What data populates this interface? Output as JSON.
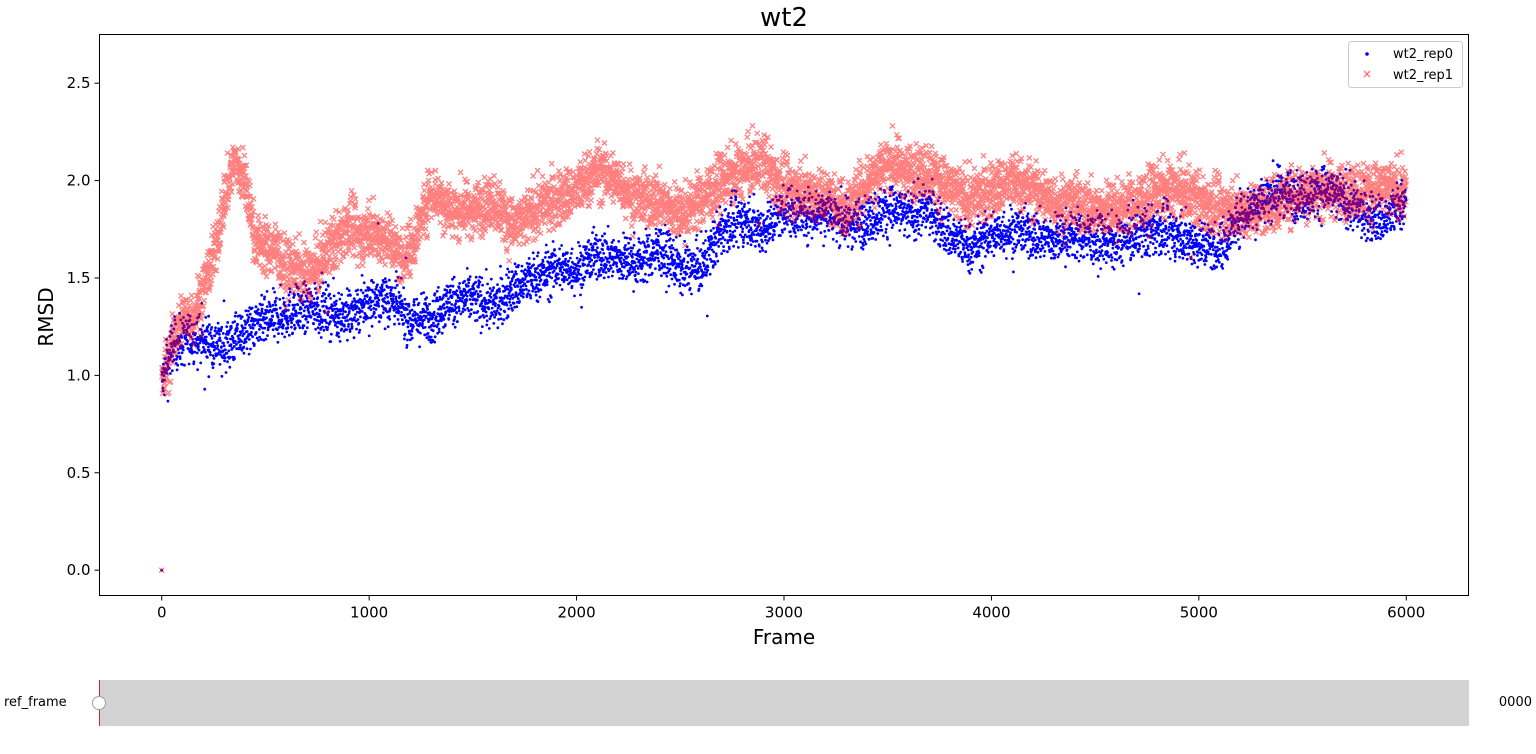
{
  "chart_data": {
    "type": "scatter",
    "title": "wt2",
    "xlabel": "Frame",
    "ylabel": "RMSD",
    "xlim": [
      -300,
      6300
    ],
    "ylim": [
      -0.13,
      2.75
    ],
    "xticks": [
      0,
      1000,
      2000,
      3000,
      4000,
      5000,
      6000
    ],
    "yticks": [
      0.0,
      0.5,
      1.0,
      1.5,
      2.0,
      2.5
    ],
    "ytick_labels": [
      "0.0",
      "0.5",
      "1.0",
      "1.5",
      "2.0",
      "2.5"
    ],
    "legend_position": "top-right",
    "grid": false,
    "series": [
      {
        "name": "wt2_rep0",
        "marker": "dot",
        "color": "#0000ff",
        "trend": [
          [
            0,
            0.95
          ],
          [
            50,
            1.15
          ],
          [
            150,
            1.2
          ],
          [
            300,
            1.15
          ],
          [
            450,
            1.25
          ],
          [
            600,
            1.32
          ],
          [
            750,
            1.35
          ],
          [
            900,
            1.3
          ],
          [
            1000,
            1.38
          ],
          [
            1100,
            1.4
          ],
          [
            1200,
            1.28
          ],
          [
            1300,
            1.3
          ],
          [
            1400,
            1.38
          ],
          [
            1500,
            1.4
          ],
          [
            1600,
            1.35
          ],
          [
            1700,
            1.45
          ],
          [
            1800,
            1.5
          ],
          [
            1900,
            1.55
          ],
          [
            2000,
            1.55
          ],
          [
            2100,
            1.62
          ],
          [
            2200,
            1.6
          ],
          [
            2300,
            1.58
          ],
          [
            2400,
            1.65
          ],
          [
            2500,
            1.55
          ],
          [
            2600,
            1.55
          ],
          [
            2700,
            1.75
          ],
          [
            2800,
            1.8
          ],
          [
            2900,
            1.75
          ],
          [
            3000,
            1.85
          ],
          [
            3100,
            1.82
          ],
          [
            3200,
            1.85
          ],
          [
            3300,
            1.78
          ],
          [
            3400,
            1.8
          ],
          [
            3500,
            1.85
          ],
          [
            3600,
            1.82
          ],
          [
            3700,
            1.85
          ],
          [
            3800,
            1.72
          ],
          [
            3900,
            1.65
          ],
          [
            4000,
            1.72
          ],
          [
            4100,
            1.75
          ],
          [
            4200,
            1.72
          ],
          [
            4300,
            1.7
          ],
          [
            4400,
            1.72
          ],
          [
            4500,
            1.7
          ],
          [
            4600,
            1.68
          ],
          [
            4700,
            1.72
          ],
          [
            4800,
            1.75
          ],
          [
            4900,
            1.72
          ],
          [
            5000,
            1.68
          ],
          [
            5100,
            1.65
          ],
          [
            5200,
            1.82
          ],
          [
            5300,
            1.9
          ],
          [
            5400,
            1.95
          ],
          [
            5500,
            1.92
          ],
          [
            5600,
            1.95
          ],
          [
            5700,
            1.9
          ],
          [
            5800,
            1.82
          ],
          [
            5900,
            1.8
          ],
          [
            6000,
            1.9
          ]
        ],
        "spread": 0.09,
        "count": 6000
      },
      {
        "name": "wt2_rep1",
        "marker": "x",
        "color": "#ff0000",
        "trend": [
          [
            0,
            0.95
          ],
          [
            50,
            1.15
          ],
          [
            100,
            1.3
          ],
          [
            150,
            1.3
          ],
          [
            200,
            1.45
          ],
          [
            250,
            1.6
          ],
          [
            300,
            1.9
          ],
          [
            350,
            2.1
          ],
          [
            400,
            2.0
          ],
          [
            450,
            1.7
          ],
          [
            500,
            1.65
          ],
          [
            550,
            1.65
          ],
          [
            600,
            1.55
          ],
          [
            650,
            1.55
          ],
          [
            700,
            1.52
          ],
          [
            750,
            1.55
          ],
          [
            800,
            1.65
          ],
          [
            850,
            1.7
          ],
          [
            900,
            1.78
          ],
          [
            950,
            1.7
          ],
          [
            1000,
            1.75
          ],
          [
            1050,
            1.72
          ],
          [
            1100,
            1.7
          ],
          [
            1150,
            1.6
          ],
          [
            1200,
            1.65
          ],
          [
            1300,
            1.95
          ],
          [
            1400,
            1.85
          ],
          [
            1500,
            1.85
          ],
          [
            1600,
            1.9
          ],
          [
            1700,
            1.75
          ],
          [
            1800,
            1.85
          ],
          [
            1900,
            1.9
          ],
          [
            2000,
            1.95
          ],
          [
            2100,
            2.05
          ],
          [
            2200,
            2.0
          ],
          [
            2300,
            1.9
          ],
          [
            2400,
            1.9
          ],
          [
            2500,
            1.82
          ],
          [
            2600,
            1.9
          ],
          [
            2700,
            2.0
          ],
          [
            2800,
            2.05
          ],
          [
            2900,
            2.1
          ],
          [
            3000,
            1.95
          ],
          [
            3100,
            1.95
          ],
          [
            3200,
            1.92
          ],
          [
            3300,
            1.85
          ],
          [
            3400,
            2.0
          ],
          [
            3500,
            2.1
          ],
          [
            3600,
            2.05
          ],
          [
            3700,
            2.05
          ],
          [
            3800,
            1.95
          ],
          [
            3900,
            1.9
          ],
          [
            4000,
            1.95
          ],
          [
            4100,
            2.0
          ],
          [
            4200,
            1.95
          ],
          [
            4300,
            1.9
          ],
          [
            4400,
            1.88
          ],
          [
            4500,
            1.85
          ],
          [
            4600,
            1.85
          ],
          [
            4700,
            1.88
          ],
          [
            4800,
            1.95
          ],
          [
            4900,
            1.95
          ],
          [
            5000,
            1.9
          ],
          [
            5100,
            1.85
          ],
          [
            5200,
            1.85
          ],
          [
            5300,
            1.85
          ],
          [
            5400,
            1.9
          ],
          [
            5500,
            1.95
          ],
          [
            5600,
            1.95
          ],
          [
            5700,
            1.95
          ],
          [
            5800,
            1.95
          ],
          [
            5900,
            1.95
          ],
          [
            6000,
            1.95
          ]
        ],
        "spread": 0.1,
        "count": 6000
      }
    ]
  },
  "slider": {
    "label": "ref_frame",
    "value": "0000",
    "min": 0,
    "max": 6000,
    "current": 0
  }
}
